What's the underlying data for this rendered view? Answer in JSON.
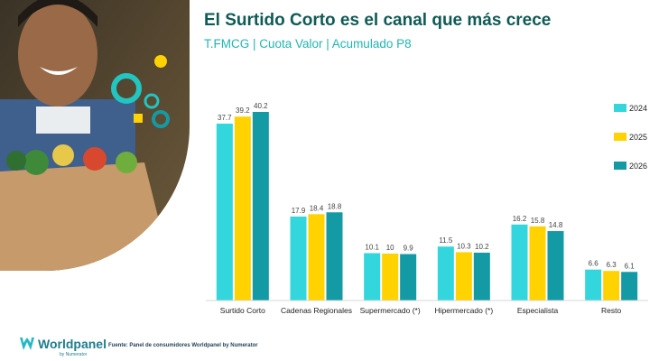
{
  "header": {
    "title": "El Surtido Corto es el canal que más crece",
    "subtitle": "T.FMCG | Cuota Valor | Acumulado P8"
  },
  "footer": {
    "logo_name": "Worldpanel",
    "logo_sub": "by Numerator",
    "source": "Fuente: Panel de consumidores Worldpanel by Numerator"
  },
  "colors": {
    "s2024": "#33d6dc",
    "s2025": "#ffd200",
    "s2026": "#149aa4",
    "title": "#0f5a55"
  },
  "chart_data": {
    "type": "bar",
    "title": "El Surtido Corto es el canal que más crece",
    "subtitle": "T.FMCG | Cuota Valor | Acumulado P8",
    "categories": [
      "Surtido Corto",
      "Cadenas Regionales",
      "Supermercado (*)",
      "Hipermercado (*)",
      "Especialista",
      "Resto"
    ],
    "series": [
      {
        "name": "2024",
        "values": [
          37.7,
          17.9,
          10.1,
          11.5,
          16.2,
          6.6
        ],
        "labels": [
          "37.7",
          "17.9",
          "10.1",
          "11.5",
          "16.2",
          "6.6"
        ]
      },
      {
        "name": "2025",
        "values": [
          39.2,
          18.4,
          10,
          10.3,
          15.8,
          6.3
        ],
        "labels": [
          "39.2",
          "18.4",
          "10",
          "10.3",
          "15.8",
          "6.3"
        ]
      },
      {
        "name": "2026",
        "values": [
          40.2,
          18.8,
          9.9,
          10.2,
          14.8,
          6.1
        ],
        "labels": [
          "40.2",
          "18.8",
          "9.9",
          "10.2",
          "14.8",
          "6.1"
        ]
      }
    ],
    "ylim": [
      0,
      40.2
    ],
    "grid": false,
    "legend": "right"
  }
}
